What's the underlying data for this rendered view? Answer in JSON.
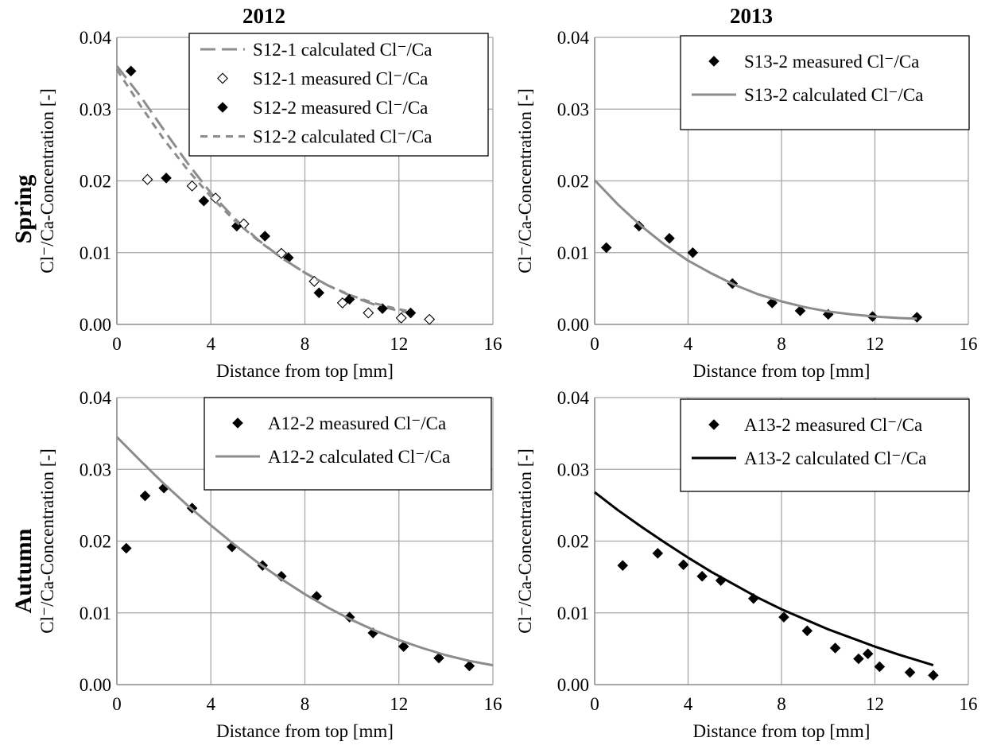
{
  "figure": {
    "col_headers": [
      "2012",
      "2013"
    ],
    "row_labels": [
      "Spring",
      "Autumn"
    ]
  },
  "chart_data": [
    {
      "id": "spring-2012",
      "type": "scatter",
      "title": "",
      "xlabel": "Distance from top [mm]",
      "ylabel": "Cl⁻/Ca-Concentration [-]",
      "xlim": [
        0,
        16
      ],
      "ylim": [
        0,
        0.04
      ],
      "xticks": [
        "0",
        "4",
        "8",
        "12",
        "16"
      ],
      "yticks": [
        "0.00",
        "0.01",
        "0.02",
        "0.03",
        "0.04"
      ],
      "grid": true,
      "legend_position": "top-right",
      "series": [
        {
          "name": "S12-1 calculated Cl⁻/Ca",
          "kind": "line",
          "style": "longdash",
          "color": "#8c8c8c",
          "x": [
            0,
            1,
            2,
            3,
            4,
            5,
            6,
            7,
            8,
            9,
            10,
            11,
            12,
            12.5
          ],
          "y": [
            0.036,
            0.0318,
            0.0271,
            0.0225,
            0.0183,
            0.0148,
            0.0118,
            0.0093,
            0.0072,
            0.0054,
            0.0039,
            0.0027,
            0.0019,
            0.0016
          ]
        },
        {
          "name": "S12-1 measured Cl⁻/Ca",
          "kind": "marker",
          "marker": "diamond-open",
          "color": "#000000",
          "x": [
            1.3,
            3.2,
            4.2,
            5.4,
            7.0,
            8.4,
            9.6,
            10.7,
            12.1,
            13.3
          ],
          "y": [
            0.0202,
            0.0193,
            0.0176,
            0.014,
            0.0099,
            0.006,
            0.003,
            0.0016,
            0.0009,
            0.0007
          ]
        },
        {
          "name": "S12-2 measured Cl⁻/Ca",
          "kind": "marker",
          "marker": "diamond-filled",
          "color": "#000000",
          "x": [
            0.6,
            2.1,
            3.7,
            5.1,
            6.3,
            7.3,
            8.6,
            9.9,
            11.3,
            12.5
          ],
          "y": [
            0.0353,
            0.0204,
            0.0172,
            0.0137,
            0.0123,
            0.0093,
            0.0044,
            0.0035,
            0.0022,
            0.0016
          ]
        },
        {
          "name": "S12-2 calculated Cl⁻/Ca",
          "kind": "line",
          "style": "shortdash",
          "color": "#8c8c8c",
          "x": [
            0,
            1,
            2,
            3,
            4,
            5,
            6,
            7,
            8,
            9,
            10,
            11,
            12,
            12.5
          ],
          "y": [
            0.0355,
            0.0305,
            0.0258,
            0.0216,
            0.0178,
            0.0145,
            0.0117,
            0.0093,
            0.0072,
            0.0054,
            0.004,
            0.0029,
            0.0021,
            0.0018
          ]
        }
      ]
    },
    {
      "id": "spring-2013",
      "type": "scatter",
      "title": "",
      "xlabel": "Distance from top [mm]",
      "ylabel": "Cl⁻/Ca-Concentration [-]",
      "xlim": [
        0,
        16
      ],
      "ylim": [
        0,
        0.04
      ],
      "xticks": [
        "0",
        "4",
        "8",
        "12",
        "16"
      ],
      "yticks": [
        "0.00",
        "0.01",
        "0.02",
        "0.03",
        "0.04"
      ],
      "grid": true,
      "legend_position": "top-right",
      "series": [
        {
          "name": "S13-2 measured Cl⁻/Ca",
          "kind": "marker",
          "marker": "diamond-filled",
          "color": "#000000",
          "x": [
            0.5,
            1.9,
            3.2,
            4.2,
            5.9,
            7.6,
            8.8,
            10.0,
            11.9,
            13.8
          ],
          "y": [
            0.0107,
            0.0137,
            0.012,
            0.01,
            0.0057,
            0.003,
            0.0019,
            0.0014,
            0.0011,
            0.001
          ]
        },
        {
          "name": "S13-2 calculated Cl⁻/Ca",
          "kind": "line",
          "style": "solid",
          "color": "#8c8c8c",
          "x": [
            0,
            1,
            2,
            3,
            4,
            5,
            6,
            7,
            8,
            9,
            10,
            11,
            12,
            13,
            13.8
          ],
          "y": [
            0.0201,
            0.0167,
            0.0137,
            0.0111,
            0.0089,
            0.0071,
            0.0055,
            0.0042,
            0.0032,
            0.0024,
            0.0018,
            0.0014,
            0.0011,
            0.0009,
            0.0008
          ]
        }
      ]
    },
    {
      "id": "autumn-2012",
      "type": "scatter",
      "title": "",
      "xlabel": "Distance from top [mm]",
      "ylabel": "Cl⁻/Ca-Concentration [-]",
      "xlim": [
        0,
        16
      ],
      "ylim": [
        0,
        0.04
      ],
      "xticks": [
        "0",
        "4",
        "8",
        "12",
        "16"
      ],
      "yticks": [
        "0.00",
        "0.01",
        "0.02",
        "0.03",
        "0.04"
      ],
      "grid": true,
      "legend_position": "top-right",
      "series": [
        {
          "name": "A12-2 measured Cl⁻/Ca",
          "kind": "marker",
          "marker": "diamond-filled",
          "color": "#000000",
          "x": [
            0.4,
            1.2,
            2.0,
            3.2,
            4.9,
            6.2,
            7.0,
            8.5,
            9.9,
            10.9,
            12.2,
            13.7,
            15.0
          ],
          "y": [
            0.019,
            0.0263,
            0.0274,
            0.0246,
            0.0192,
            0.0166,
            0.0151,
            0.0123,
            0.0094,
            0.0072,
            0.0053,
            0.0037,
            0.0026
          ]
        },
        {
          "name": "A12-2 calculated Cl⁻/Ca",
          "kind": "line",
          "style": "solid",
          "color": "#8c8c8c",
          "x": [
            0,
            1,
            2,
            3,
            4,
            5,
            6,
            7,
            8,
            9,
            10,
            11,
            12,
            13,
            14,
            15,
            16
          ],
          "y": [
            0.0345,
            0.0312,
            0.028,
            0.025,
            0.0222,
            0.0195,
            0.017,
            0.0147,
            0.0126,
            0.0107,
            0.009,
            0.0075,
            0.0062,
            0.0051,
            0.0041,
            0.0033,
            0.0027
          ]
        }
      ]
    },
    {
      "id": "autumn-2013",
      "type": "scatter",
      "title": "",
      "xlabel": "Distance from top [mm]",
      "ylabel": "Cl⁻/Ca-Concentration [-]",
      "xlim": [
        0,
        16
      ],
      "ylim": [
        0,
        0.04
      ],
      "xticks": [
        "0",
        "4",
        "8",
        "12",
        "16"
      ],
      "yticks": [
        "0.00",
        "0.01",
        "0.02",
        "0.03",
        "0.04"
      ],
      "grid": true,
      "legend_position": "top-right",
      "series": [
        {
          "name": "A13-2 measured Cl⁻/Ca",
          "kind": "marker",
          "marker": "diamond-filled",
          "color": "#000000",
          "x": [
            1.2,
            2.7,
            3.8,
            4.6,
            5.4,
            6.8,
            8.1,
            9.1,
            10.3,
            11.3,
            11.7,
            12.2,
            13.5,
            14.5
          ],
          "y": [
            0.0166,
            0.0183,
            0.0167,
            0.0151,
            0.0145,
            0.012,
            0.0094,
            0.0075,
            0.0051,
            0.0036,
            0.0043,
            0.0025,
            0.0017,
            0.0013
          ]
        },
        {
          "name": "A13-2 calculated Cl⁻/Ca",
          "kind": "line",
          "style": "solid",
          "color": "#000000",
          "x": [
            0,
            1,
            2,
            3,
            4,
            5,
            6,
            7,
            8,
            9,
            10,
            11,
            12,
            13,
            14,
            14.5
          ],
          "y": [
            0.0268,
            0.0243,
            0.022,
            0.0198,
            0.0177,
            0.0157,
            0.0139,
            0.0121,
            0.0105,
            0.0091,
            0.0077,
            0.0065,
            0.0053,
            0.0042,
            0.0032,
            0.0027
          ]
        }
      ]
    }
  ]
}
